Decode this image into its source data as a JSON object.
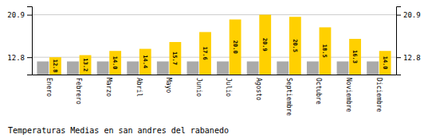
{
  "chart_data": {
    "type": "bar",
    "title": "Temperaturas Medias en san andres del rabanedo",
    "categories": [
      "Enero",
      "Febrero",
      "Marzo",
      "Abril",
      "Mayo",
      "Junio",
      "Julio",
      "Agosto",
      "Septiembre",
      "Octubre",
      "Noviembre",
      "Diciembre"
    ],
    "series": [
      {
        "color": "#AAAAAA",
        "values": [
          12.0,
          12.0,
          12.0,
          12.0,
          12.0,
          12.0,
          12.0,
          12.0,
          12.0,
          12.0,
          12.0,
          12.0
        ]
      },
      {
        "color": "#FFD000",
        "values": [
          12.8,
          13.2,
          14.0,
          14.4,
          15.7,
          17.6,
          20.0,
          20.9,
          20.5,
          18.5,
          16.3,
          14.0
        ],
        "value_labels": [
          "12.8",
          "13.2",
          "14.0",
          "14.4",
          "15.7",
          "17.6",
          "20.0",
          "20.9",
          "20.5",
          "18.5",
          "16.3",
          "14.0"
        ],
        "data_labels": true
      }
    ],
    "ylim": [
      9.5,
      22.5
    ],
    "yticks": [
      12.8,
      20.9
    ],
    "y2lim": [
      9.5,
      22.5
    ],
    "y2ticks": [
      12.8,
      20.9
    ],
    "grid": true
  }
}
